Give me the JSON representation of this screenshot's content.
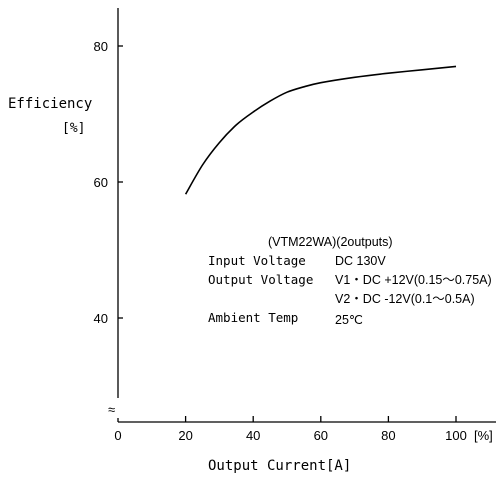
{
  "chart_data": {
    "type": "line",
    "xlabel": "Output Current[A]",
    "ylabel": "Efficiency",
    "ylabel_unit": "[%]",
    "x_unit_label": "[%]",
    "xlim": [
      0,
      100
    ],
    "ylim_visible": [
      30,
      85
    ],
    "axis_break_symbol": "≈",
    "x_ticks": [
      {
        "value": 0,
        "label": "0"
      },
      {
        "value": 20,
        "label": "20"
      },
      {
        "value": 40,
        "label": "40"
      },
      {
        "value": 60,
        "label": "60"
      },
      {
        "value": 80,
        "label": "80"
      },
      {
        "value": 100,
        "label": "100"
      }
    ],
    "y_ticks": [
      {
        "value": 40,
        "label": "40"
      },
      {
        "value": 60,
        "label": "60"
      },
      {
        "value": 80,
        "label": "80"
      }
    ],
    "grid": false,
    "series": [
      {
        "x": [
          20,
          25,
          30,
          35,
          40,
          45,
          50,
          55,
          60,
          70,
          80,
          90,
          100
        ],
        "values": [
          58.2,
          62.5,
          65.8,
          68.4,
          70.3,
          71.9,
          73.2,
          74.0,
          74.6,
          75.4,
          76.0,
          76.5,
          77.0
        ]
      }
    ],
    "annotation": {
      "title": "(VTM22WA)(2outputs)",
      "rows": [
        {
          "key": "Input Voltage",
          "value": "DC 130V"
        },
        {
          "key": "Output Voltage",
          "value": "V1・DC +12V(0.15～0.75A)"
        },
        {
          "key": "",
          "value": "V2・DC -12V(0.1～0.5A)"
        },
        {
          "key": "Ambient Temp",
          "value": "25℃"
        }
      ]
    }
  }
}
